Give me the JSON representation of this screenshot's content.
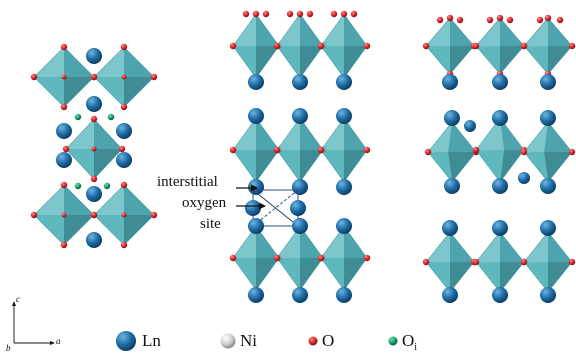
{
  "annotation": {
    "line1": "interstitial",
    "line2": "oxygen",
    "line3": "site"
  },
  "axes": {
    "c": "c",
    "a": "a",
    "b": "b"
  },
  "legend": {
    "ln": "Ln",
    "ni": "Ni",
    "o": "O",
    "oi_main": "O",
    "oi_sub": "i"
  },
  "colors": {
    "octahedron": "#3fa6ae",
    "ln_atom": "#1f6fa8",
    "ni_atom": "#d9d9d9",
    "o_atom": "#d8262a",
    "oi_atom": "#1a9a6a"
  }
}
